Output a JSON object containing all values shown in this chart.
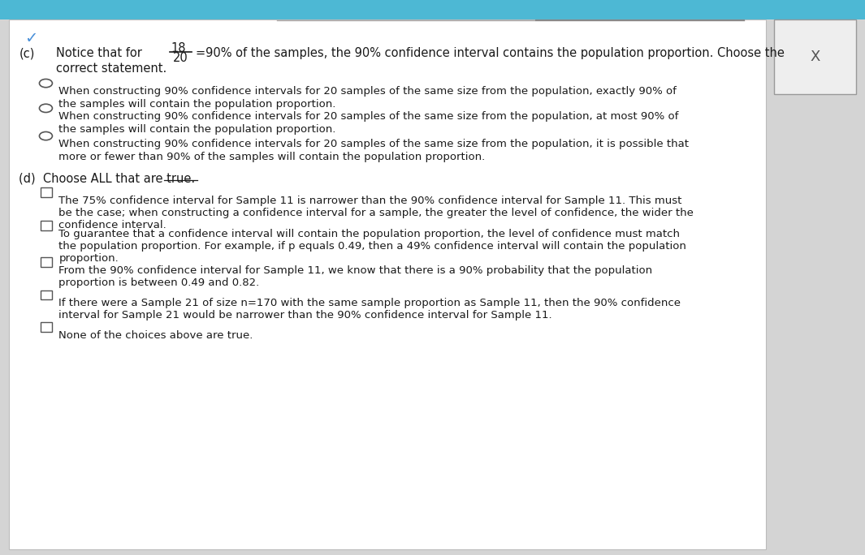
{
  "bg_color": "#d4d4d4",
  "top_bar_color": "#4db8d4",
  "text_color": "#1a1a1a",
  "title_c": "(c)",
  "title_text_1": "Notice that for",
  "fraction_num": "18",
  "fraction_den": "20",
  "title_text_2": "=90% of the samples, the 90% confidence interval contains the population proportion. Choose the",
  "title_text_3": "correct statement.",
  "radio_options": [
    "When constructing 90% confidence intervals for 20 samples of the same size from the population, exactly 90% of\nthe samples will contain the population proportion.",
    "When constructing 90% confidence intervals for 20 samples of the same size from the population, at most 90% of\nthe samples will contain the population proportion.",
    "When constructing 90% confidence intervals for 20 samples of the same size from the population, it is possible that\nmore or fewer than 90% of the samples will contain the population proportion."
  ],
  "title_d": "(d)  Choose ALL that are true.",
  "checkbox_options": [
    "The 75% confidence interval for Sample 11 is narrower than the 90% confidence interval for Sample 11. This must\nbe the case; when constructing a confidence interval for a sample, the greater the level of confidence, the wider the\nconfidence interval.",
    "To guarantee that a confidence interval will contain the population proportion, the level of confidence must match\nthe population proportion. For example, if p equals 0.49, then a 49% confidence interval will contain the population\nproportion.",
    "From the 90% confidence interval for Sample 11, we know that there is a 90% probability that the population\nproportion is between 0.49 and 0.82.",
    "If there were a Sample 21 of size n=170 with the same sample proportion as Sample 11, then the 90% confidence\ninterval for Sample 21 would be narrower than the 90% confidence interval for Sample 11.",
    "None of the choices above are true."
  ],
  "font_size_main": 9.5,
  "font_size_label": 10.5
}
